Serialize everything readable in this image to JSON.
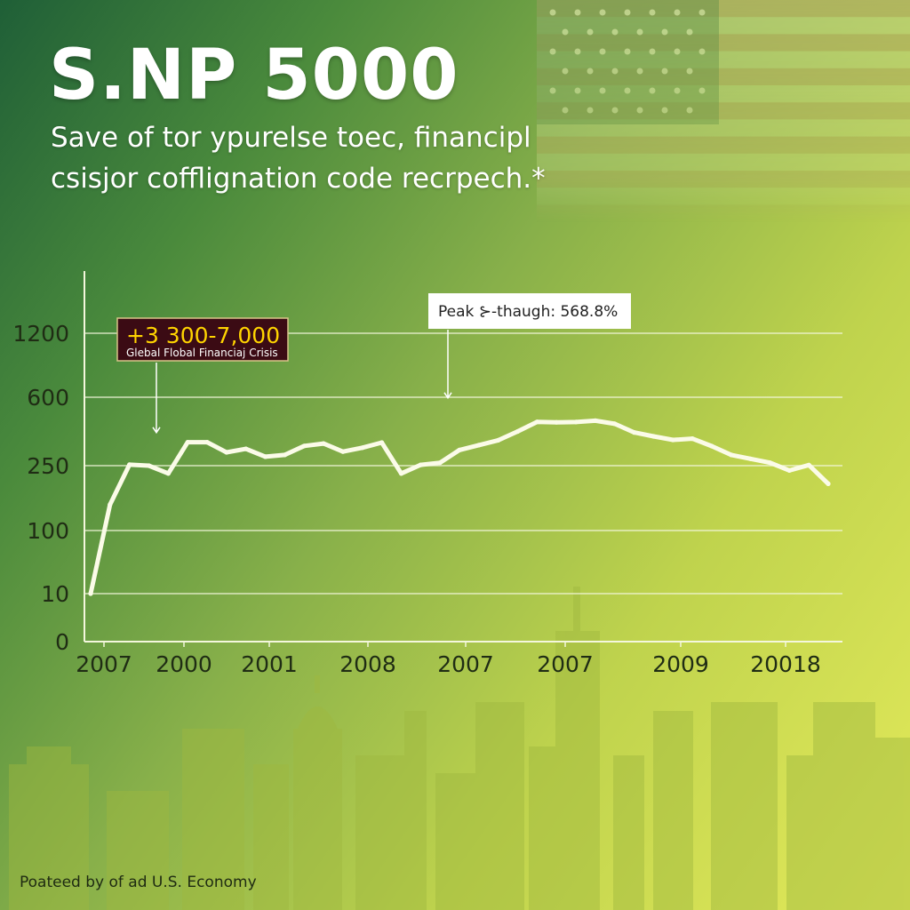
{
  "title": "S.NP 5000",
  "subtitle": "Save of tor ypurelse toec, financipl csisjor cofflignation code recrpech.*",
  "footer": "Poateed by of ad U.S. Economy",
  "colors": {
    "line": "#fbfbe8",
    "callout_box": "#3b0b14",
    "callout_text": "#ffd400",
    "title": "#ffffff"
  },
  "annotations": [
    {
      "label": "+3 300-7,000",
      "sublabel": "Glebal Flobal Financiaj Crisis",
      "points_to_index": 4
    },
    {
      "label": "Peak ⊱-thaugh: 568.8%",
      "points_to_index": 16
    }
  ],
  "chart_data": {
    "type": "line",
    "x_tick_labels": [
      "2007",
      "2000",
      "2001",
      "2008",
      "2007",
      "2007",
      "2009",
      "20018"
    ],
    "y_tick_labels": [
      "0",
      "10",
      "100",
      "250",
      "600",
      "1200"
    ],
    "y_scale": "nonuniform-ordinal",
    "grid": "horizontal",
    "series": [
      {
        "values": [
          10,
          160,
          255,
          250,
          232,
          370,
          370,
          318,
          336,
          296,
          305,
          351,
          363,
          322,
          342,
          368,
          232,
          254,
          265,
          330,
          355,
          380,
          425,
          474,
          472,
          473,
          480,
          464,
          420,
          400,
          382,
          388,
          350,
          305,
          285,
          265,
          239,
          253,
          208
        ]
      }
    ]
  }
}
